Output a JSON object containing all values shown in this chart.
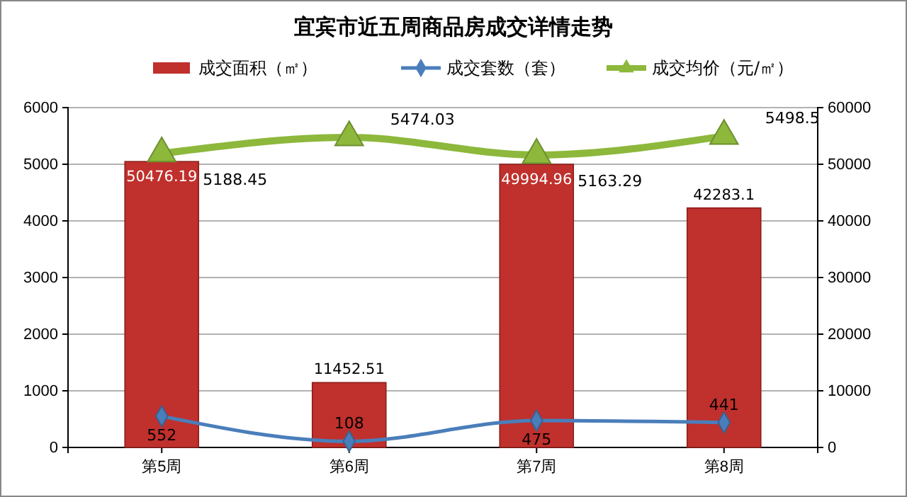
{
  "chart_data": {
    "type": "bar",
    "title": "宜宾市近五周商品房成交详情走势",
    "categories": [
      "第5周",
      "第6周",
      "第7周",
      "第8周"
    ],
    "series": [
      {
        "name": "成交面积（㎡）",
        "type": "bar",
        "axis": "y2",
        "color": "#c0302c",
        "values": [
          50476.19,
          11452.51,
          49994.96,
          42283.1
        ]
      },
      {
        "name": "成交套数（套）",
        "type": "line",
        "axis": "y",
        "color": "#4a7ebb",
        "marker": "diamond",
        "values": [
          552,
          108,
          475,
          441
        ]
      },
      {
        "name": "成交均价（元/㎡）",
        "type": "line",
        "axis": "y",
        "color": "#8db83c",
        "marker": "triangle",
        "values": [
          5188.45,
          5474.03,
          5163.29,
          5498.5
        ]
      }
    ],
    "ylim": [
      0,
      6000
    ],
    "yticks": [
      0,
      1000,
      2000,
      3000,
      4000,
      5000,
      6000
    ],
    "y2lim": [
      0,
      60000
    ],
    "y2ticks": [
      0,
      10000,
      20000,
      30000,
      40000,
      50000,
      60000
    ],
    "grid": "y",
    "legend": "top",
    "data_labels": true
  }
}
